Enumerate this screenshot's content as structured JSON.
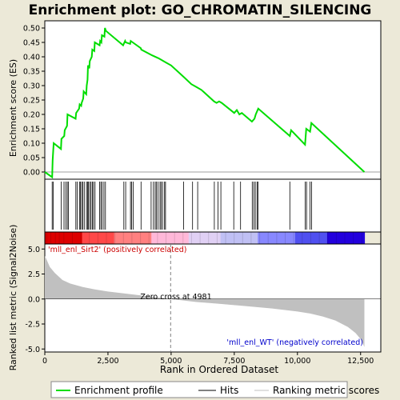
{
  "chart_data": {
    "type": "line",
    "title": "Enrichment plot: GO_CHROMATIN_SILENCING",
    "xlabel": "Rank in Ordered Dataset",
    "xlim": [
      0,
      13300
    ],
    "x_ticks": [
      "0",
      "2,500",
      "5,000",
      "7,500",
      "10,000",
      "12,500"
    ],
    "x_tick_values": [
      0,
      2500,
      5000,
      7500,
      10000,
      12500
    ],
    "top_panel": {
      "ylabel": "Enrichment score (ES)",
      "ylim": [
        -0.025,
        0.525
      ],
      "y_ticks": [
        "0.00",
        "0.05",
        "0.10",
        "0.15",
        "0.20",
        "0.25",
        "0.30",
        "0.35",
        "0.40",
        "0.45",
        "0.50"
      ],
      "y_tick_values": [
        0,
        0.05,
        0.1,
        0.15,
        0.2,
        0.25,
        0.3,
        0.35,
        0.4,
        0.45,
        0.5
      ],
      "series": [
        {
          "name": "Enrichment profile",
          "color": "#00dd00",
          "x": [
            0,
            290,
            310,
            350,
            640,
            660,
            770,
            790,
            880,
            900,
            1220,
            1240,
            1360,
            1380,
            1440,
            1460,
            1520,
            1540,
            1640,
            1660,
            1690,
            1710,
            1760,
            1780,
            1860,
            1880,
            1960,
            1980,
            2170,
            2190,
            2240,
            2260,
            2360,
            2380,
            2420,
            3100,
            3180,
            3200,
            3380,
            3400,
            3480,
            3800,
            3820,
            4250,
            4500,
            4800,
            5000,
            5500,
            5800,
            6000,
            6200,
            6700,
            6800,
            6900,
            7000,
            7500,
            7600,
            7700,
            7800,
            8200,
            8300,
            8350,
            8450,
            9700,
            9750,
            10300,
            10350,
            10500,
            10550,
            12650
          ],
          "y": [
            0.0,
            -0.018,
            0.04,
            0.1,
            0.08,
            0.115,
            0.125,
            0.145,
            0.16,
            0.2,
            0.185,
            0.205,
            0.22,
            0.235,
            0.23,
            0.24,
            0.255,
            0.28,
            0.27,
            0.3,
            0.32,
            0.37,
            0.36,
            0.385,
            0.4,
            0.425,
            0.42,
            0.45,
            0.44,
            0.455,
            0.45,
            0.475,
            0.47,
            0.5,
            0.49,
            0.44,
            0.455,
            0.45,
            0.445,
            0.455,
            0.45,
            0.43,
            0.425,
            0.405,
            0.395,
            0.38,
            0.37,
            0.33,
            0.305,
            0.295,
            0.285,
            0.245,
            0.24,
            0.245,
            0.24,
            0.205,
            0.215,
            0.2,
            0.205,
            0.175,
            0.185,
            0.2,
            0.22,
            0.125,
            0.145,
            0.095,
            0.15,
            0.14,
            0.17,
            0.0
          ]
        }
      ]
    },
    "hits": [
      290,
      330,
      650,
      760,
      830,
      890,
      930,
      1230,
      1280,
      1370,
      1410,
      1460,
      1500,
      1560,
      1650,
      1690,
      1730,
      1780,
      1830,
      1880,
      1930,
      1990,
      2170,
      2220,
      2270,
      2340,
      2400,
      3130,
      3200,
      3390,
      3440,
      3500,
      3810,
      4210,
      4300,
      4370,
      4420,
      4480,
      4560,
      4600,
      4660,
      4740,
      4780,
      5490,
      5850,
      6050,
      6710,
      6860,
      6970,
      7480,
      7750,
      8210,
      8270,
      8330,
      8400,
      8440,
      9700,
      10310,
      10360,
      10500,
      10560
    ],
    "heatmap_colors": [
      "#dd0000",
      "#ff4848",
      "#ff8080",
      "#ffb8d8",
      "#e0d0f4",
      "#c0c0f4",
      "#8888ff",
      "#5050f0",
      "#2200dd"
    ],
    "bottom_panel": {
      "ylabel": "Ranked list metric (Signal2Noise)",
      "ylim": [
        -5.3,
        5.5
      ],
      "y_ticks": [
        "5.0",
        "2.5",
        "0.0",
        "-2.5",
        "-5.0"
      ],
      "y_tick_values": [
        5,
        2.5,
        0,
        -2.5,
        -5
      ],
      "zero_cross_rank": 4981,
      "zero_cross_label": "Zero cross at 4981",
      "positive_label": "'mll_enl_Sirt2' (positively correlated)",
      "negative_label": "'mll_enl_WT' (negatively correlated)",
      "metric_rank": [
        0,
        60,
        200,
        400,
        700,
        1000,
        1500,
        2000,
        2500,
        3000,
        3500,
        4000,
        4981,
        6000,
        7000,
        8000,
        9000,
        10000,
        10500,
        11000,
        11500,
        12000,
        12300,
        12500,
        12600,
        12650
      ],
      "metric_value": [
        4.3,
        4.0,
        3.2,
        2.6,
        1.9,
        1.55,
        1.2,
        0.95,
        0.75,
        0.6,
        0.45,
        0.3,
        0.0,
        -0.3,
        -0.5,
        -0.72,
        -0.95,
        -1.25,
        -1.45,
        -1.75,
        -2.15,
        -2.8,
        -3.4,
        -4.0,
        -4.5,
        -4.8
      ]
    },
    "legend": {
      "position": "bottom",
      "entries": [
        {
          "name": "Enrichment profile",
          "color": "#00dd00"
        },
        {
          "name": "Hits",
          "color": "#000000"
        },
        {
          "name": "Ranking metric scores",
          "color": "#c0c0c0"
        }
      ]
    }
  }
}
